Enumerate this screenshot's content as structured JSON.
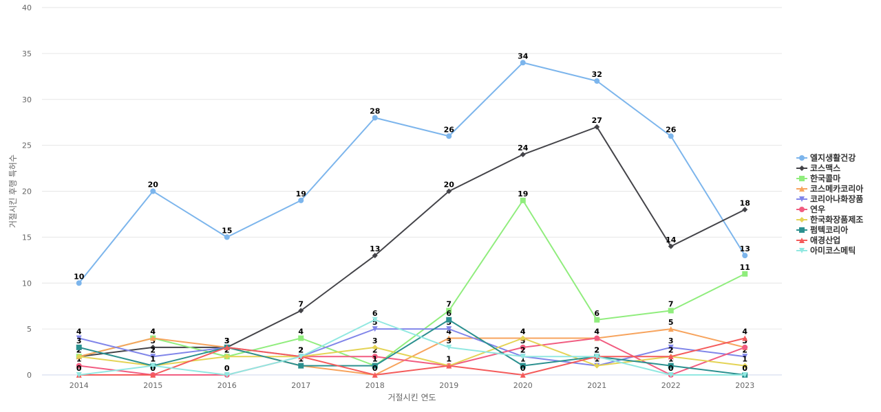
{
  "chart_data": {
    "type": "line",
    "xlabel": "거절시킨 연도",
    "ylabel": "거절시킨 후행 특허수",
    "ylim": [
      0,
      40
    ],
    "yticks": [
      0,
      5,
      10,
      15,
      20,
      25,
      30,
      35,
      40
    ],
    "grid": true,
    "legend_position": "right",
    "categories": [
      "2014",
      "2015",
      "2016",
      "2017",
      "2018",
      "2019",
      "2020",
      "2021",
      "2022",
      "2023"
    ],
    "series": [
      {
        "name": "엘지생활건강",
        "color": "#7cb5ec",
        "marker": "circle",
        "values": [
          10,
          20,
          15,
          19,
          28,
          26,
          34,
          32,
          26,
          13
        ]
      },
      {
        "name": "코스맥스",
        "color": "#434348",
        "marker": "diamond",
        "values": [
          2,
          3,
          3,
          7,
          13,
          20,
          24,
          27,
          14,
          18
        ]
      },
      {
        "name": "한국콜마",
        "color": "#90ed7d",
        "marker": "square",
        "values": [
          2,
          4,
          2,
          4,
          1,
          7,
          19,
          6,
          7,
          11
        ]
      },
      {
        "name": "코스메카코리아",
        "color": "#f7a35c",
        "marker": "triangle",
        "values": [
          2,
          4,
          3,
          1,
          0,
          4,
          4,
          4,
          5,
          3
        ]
      },
      {
        "name": "코리아나화장품",
        "color": "#8085e9",
        "marker": "triangle-down",
        "values": [
          4,
          2,
          3,
          2,
          5,
          5,
          2,
          1,
          3,
          2
        ]
      },
      {
        "name": "연우",
        "color": "#f15c80",
        "marker": "circle",
        "values": [
          1,
          0,
          0,
          2,
          2,
          1,
          3,
          4,
          0,
          3
        ]
      },
      {
        "name": "한국화장품제조",
        "color": "#e4d354",
        "marker": "diamond",
        "values": [
          2,
          1,
          2,
          2,
          3,
          1,
          4,
          1,
          2,
          1
        ]
      },
      {
        "name": "펌텍코리아",
        "color": "#2b908f",
        "marker": "square",
        "values": [
          3,
          1,
          3,
          1,
          1,
          6,
          1,
          2,
          1,
          0
        ]
      },
      {
        "name": "애경산업",
        "color": "#f45b5b",
        "marker": "triangle",
        "values": [
          0,
          0,
          3,
          2,
          0,
          1,
          0,
          2,
          2,
          4
        ]
      },
      {
        "name": "아미코스메틱",
        "color": "#91e8e1",
        "marker": "triangle-down",
        "values": [
          0,
          1,
          0,
          2,
          6,
          3,
          2,
          2,
          0,
          0
        ]
      }
    ]
  }
}
